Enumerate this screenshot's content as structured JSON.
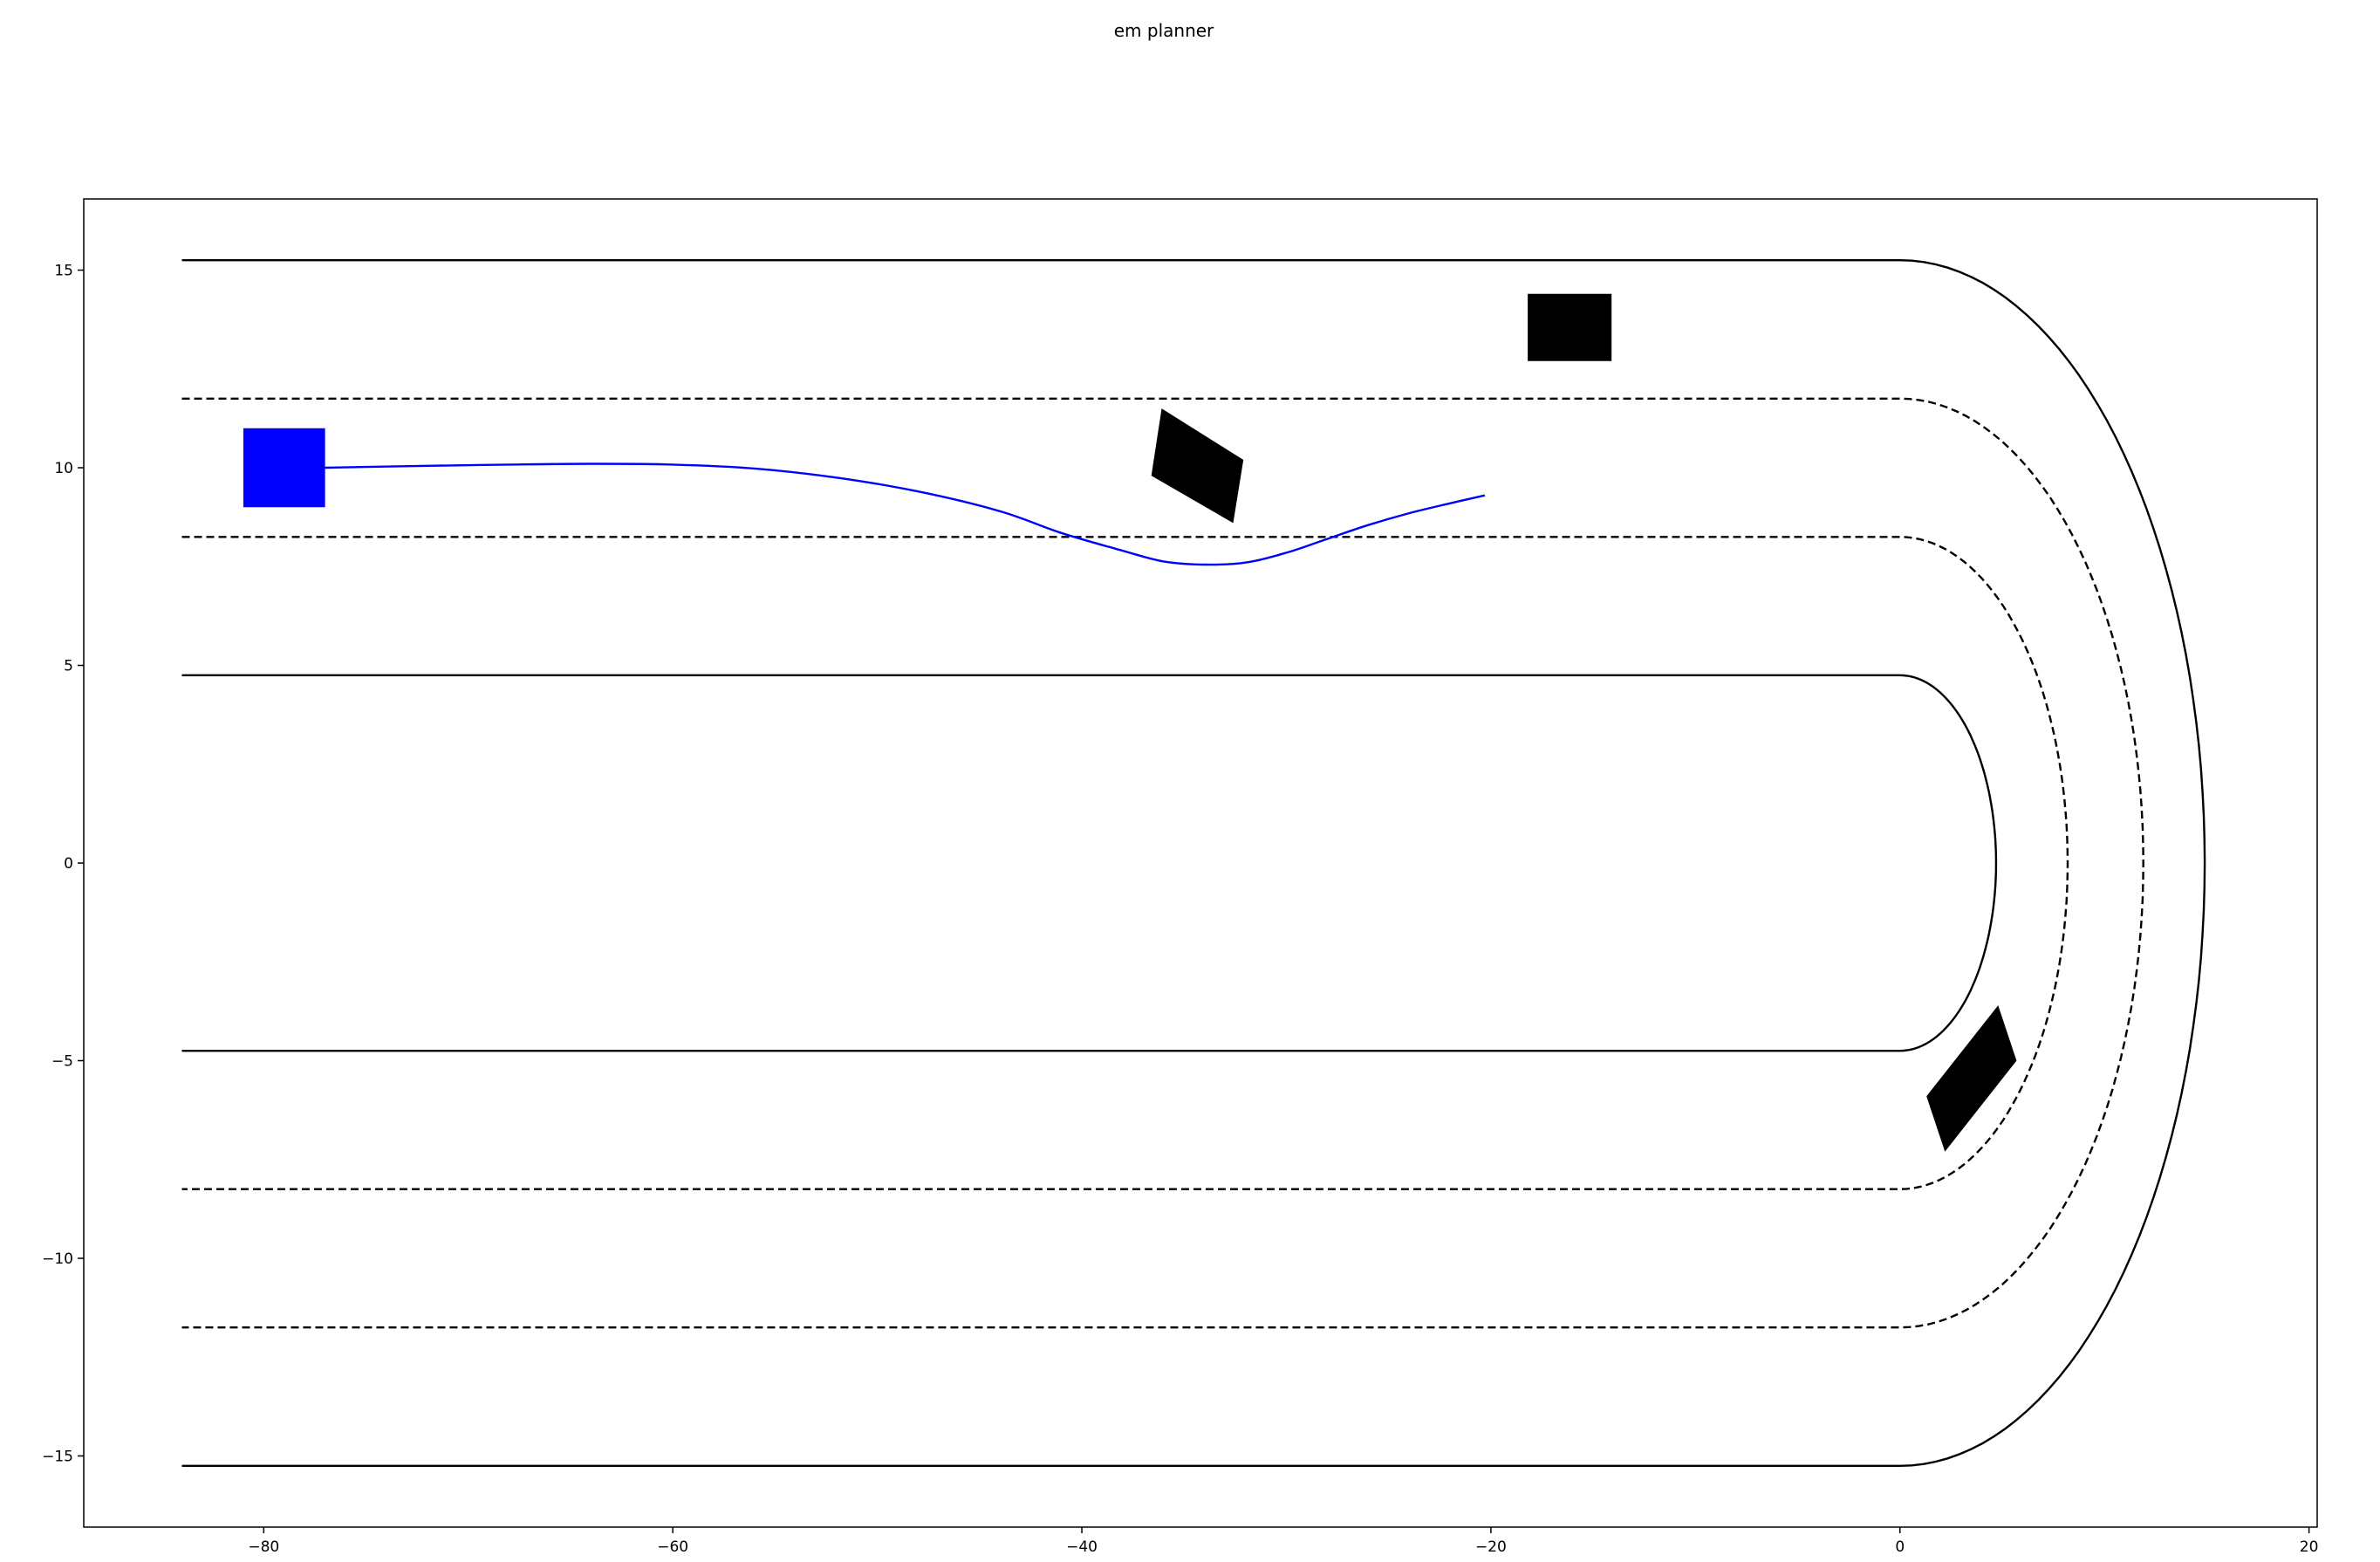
{
  "chart_data": {
    "type": "line",
    "title": "em planner",
    "xlabel": "",
    "ylabel": "",
    "xlim": [
      -88.8,
      20.4
    ],
    "ylim": [
      -16.8,
      16.8
    ],
    "grid": false,
    "x_ticks": [
      -80,
      -60,
      -40,
      -20,
      0,
      20
    ],
    "x_tick_labels": [
      "−80",
      "−60",
      "−40",
      "−20",
      "0",
      "20"
    ],
    "y_ticks": [
      -15,
      -10,
      -5,
      0,
      5,
      10,
      15
    ],
    "y_tick_labels": [
      "−15",
      "−10",
      "−5",
      "0",
      "5",
      "10",
      "15"
    ],
    "road": {
      "straight_x_start": -84,
      "turn_center": [
        0,
        0
      ],
      "boundaries": [
        {
          "offset": 15.25,
          "style": "solid",
          "color": "#000000"
        },
        {
          "offset": 11.75,
          "style": "dashed",
          "color": "#000000"
        },
        {
          "offset": 8.25,
          "style": "dashed",
          "color": "#000000"
        },
        {
          "offset": 4.75,
          "style": "solid",
          "color": "#000000"
        }
      ],
      "turn_x_scale": [
        14.9,
        11.9,
        8.2,
        4.7
      ]
    },
    "ego_vehicle": {
      "color": "#0000ff",
      "polygon": [
        [
          -81,
          9
        ],
        [
          -77,
          9
        ],
        [
          -77,
          11
        ],
        [
          -81,
          11
        ]
      ]
    },
    "obstacles": [
      {
        "color": "#000000",
        "polygon": [
          [
            -18.2,
            12.7
          ],
          [
            -14.1,
            12.7
          ],
          [
            -14.1,
            14.4
          ],
          [
            -18.2,
            14.4
          ]
        ]
      },
      {
        "color": "#000000",
        "polygon": [
          [
            -36.6,
            9.8
          ],
          [
            -32.6,
            8.6
          ],
          [
            -32.1,
            10.2
          ],
          [
            -36.1,
            11.5
          ]
        ]
      },
      {
        "color": "#000000",
        "polygon": [
          [
            1.3,
            -5.9
          ],
          [
            4.8,
            -3.6
          ],
          [
            5.7,
            -5.0
          ],
          [
            2.2,
            -7.3
          ]
        ]
      }
    ],
    "series": [
      {
        "color": "#0000ff",
        "x": [
          -77,
          -72,
          -68,
          -64,
          -60,
          -56,
          -52,
          -48,
          -44,
          -41,
          -38,
          -36,
          -34,
          -32,
          -30,
          -28,
          -26,
          -24,
          -22,
          -20.3
        ],
        "y": [
          10.0,
          10.05,
          10.08,
          10.1,
          10.08,
          9.98,
          9.75,
          9.4,
          8.9,
          8.35,
          7.9,
          7.63,
          7.55,
          7.6,
          7.85,
          8.2,
          8.55,
          8.85,
          9.1,
          9.3
        ]
      }
    ]
  }
}
